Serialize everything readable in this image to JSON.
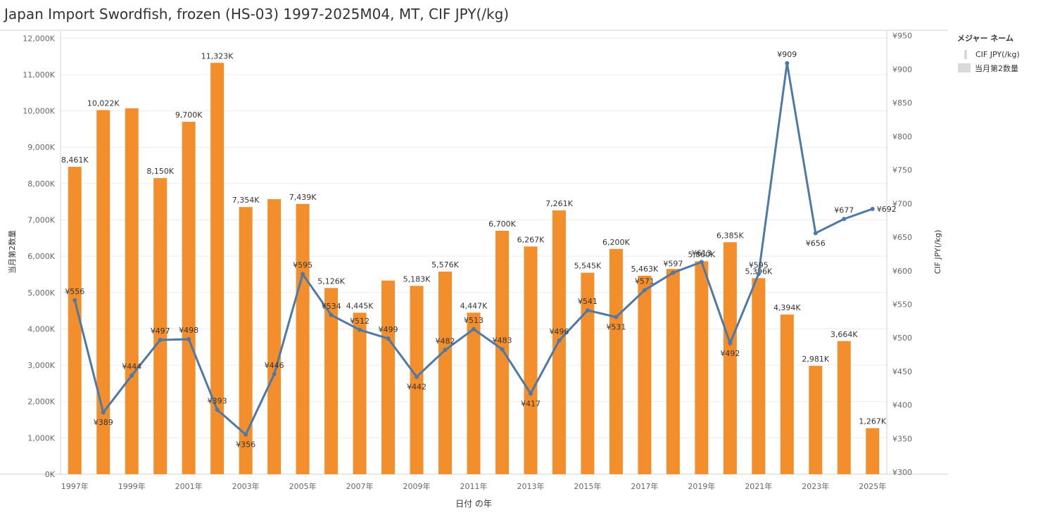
{
  "title": "Japan Import Swordfish, frozen (HS-03) 1997-2025M04, MT, CIF JPY(/kg)",
  "legend": {
    "title": "メジャー ネーム",
    "items": [
      "CIF JPY(/kg)",
      "当月第2数量"
    ]
  },
  "colors": {
    "bar": "#f28e2b",
    "line": "#4e79a7",
    "grid": "#ececec",
    "axis": "#d0d0d0"
  },
  "chart_data": {
    "type": "bar",
    "title": "Japan Import Swordfish, frozen (HS-03) 1997-2025M04, MT, CIF JPY(/kg)",
    "xlabel": "日付 の年",
    "ylabel": "当月第2数量",
    "y2label": "CIF JPY(/kg)",
    "categories": [
      "1997",
      "1998",
      "1999",
      "2000",
      "2001",
      "2002",
      "2003",
      "2004",
      "2005",
      "2006",
      "2007",
      "2008",
      "2009",
      "2010",
      "2011",
      "2012",
      "2013",
      "2014",
      "2015",
      "2016",
      "2017",
      "2018",
      "2019",
      "2020",
      "2021",
      "2022",
      "2023",
      "2024",
      "2025"
    ],
    "x_tick_labels": [
      "1997年",
      "",
      "1999年",
      "",
      "2001年",
      "",
      "2003年",
      "",
      "2005年",
      "",
      "2007年",
      "",
      "2009年",
      "",
      "2011年",
      "",
      "2013年",
      "",
      "2015年",
      "",
      "2017年",
      "",
      "2019年",
      "",
      "2021年",
      "",
      "2023年",
      "",
      "2025年"
    ],
    "ylim": [
      0,
      12200
    ],
    "y_ticks": [
      0,
      1000,
      2000,
      3000,
      4000,
      5000,
      6000,
      7000,
      8000,
      9000,
      10000,
      11000,
      12000
    ],
    "y_tick_labels": [
      "0K",
      "1,000K",
      "2,000K",
      "3,000K",
      "4,000K",
      "5,000K",
      "6,000K",
      "7,000K",
      "8,000K",
      "9,000K",
      "10,000K",
      "11,000K",
      "12,000K"
    ],
    "y2lim": [
      297,
      957
    ],
    "y2_ticks": [
      300,
      350,
      400,
      450,
      500,
      550,
      600,
      650,
      700,
      750,
      800,
      850,
      900,
      950
    ],
    "y2_tick_labels": [
      "¥300",
      "¥350",
      "¥400",
      "¥450",
      "¥500",
      "¥550",
      "¥600",
      "¥650",
      "¥700",
      "¥750",
      "¥800",
      "¥850",
      "¥900",
      "¥950"
    ],
    "grid": true,
    "legend_position": "right",
    "series": [
      {
        "name": "当月第2数量",
        "type": "bar",
        "axis": "left",
        "values": [
          8461,
          10022,
          10070,
          8150,
          9700,
          11323,
          7354,
          7570,
          7439,
          5126,
          4445,
          5330,
          5183,
          5576,
          4447,
          6700,
          6267,
          7261,
          5545,
          6200,
          5463,
          5650,
          5860,
          6385,
          5396,
          4394,
          2981,
          3664,
          1267
        ],
        "labels": [
          "8,461K",
          "10,022K",
          "",
          "8,150K",
          "9,700K",
          "11,323K",
          "7,354K",
          "",
          "7,439K",
          "5,126K",
          "4,445K",
          "",
          "5,183K",
          "5,576K",
          "4,447K",
          "6,700K",
          "6,267K",
          "7,261K",
          "5,545K",
          "6,200K",
          "5,463K",
          "",
          "5,860K",
          "6,385K",
          "5,396K",
          "4,394K",
          "2,981K",
          "3,664K",
          "1,267K"
        ]
      },
      {
        "name": "CIF JPY(/kg)",
        "type": "line",
        "axis": "right",
        "values": [
          556,
          389,
          444,
          497,
          498,
          393,
          356,
          446,
          595,
          534,
          512,
          499,
          442,
          482,
          513,
          483,
          417,
          496,
          541,
          531,
          571,
          597,
          613,
          492,
          595,
          909,
          656,
          677,
          692
        ],
        "labels": [
          "¥556",
          "¥389",
          "¥444",
          "¥497",
          "¥498",
          "¥393",
          "¥356",
          "¥446",
          "¥595",
          "¥534",
          "¥512",
          "¥499",
          "¥442",
          "¥482",
          "¥513",
          "¥483",
          "¥417",
          "¥496",
          "¥541",
          "¥531",
          "¥571",
          "¥597",
          "¥613",
          "¥492",
          "¥595",
          "¥909",
          "¥656",
          "¥677",
          "¥692"
        ]
      }
    ]
  }
}
